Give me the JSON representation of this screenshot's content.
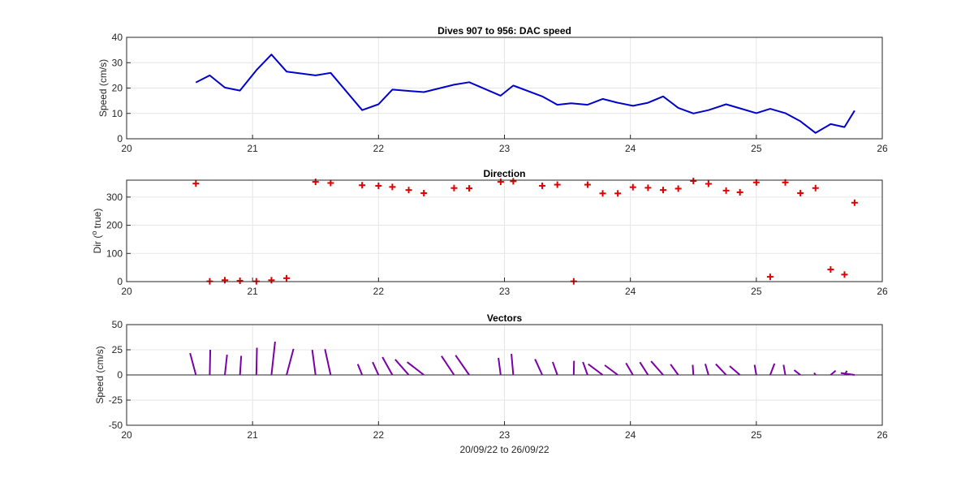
{
  "colors": {
    "speed_line": "#0000cc",
    "direction_marker": "#e00000",
    "vector": "#7b00a8",
    "grid": "#e6e6e6",
    "axis": "#262626"
  },
  "chart_data": [
    {
      "type": "line",
      "title": "Dives 907 to 956: DAC speed",
      "ylabel": "Speed (cm/s)",
      "xlabel": "",
      "xlim": [
        20,
        26
      ],
      "ylim": [
        0,
        40
      ],
      "xticks": [
        "20",
        "21",
        "22",
        "23",
        "24",
        "25",
        "26"
      ],
      "yticks": [
        "0",
        "10",
        "20",
        "30",
        "40"
      ],
      "grid": true,
      "x": [
        20.55,
        20.66,
        20.78,
        20.9,
        21.03,
        21.15,
        21.27,
        21.5,
        21.62,
        21.87,
        22.0,
        22.11,
        22.36,
        22.6,
        22.72,
        22.97,
        23.07,
        23.3,
        23.42,
        23.53,
        23.66,
        23.78,
        23.9,
        24.02,
        24.14,
        24.26,
        24.38,
        24.5,
        24.62,
        24.76,
        24.87,
        25.0,
        25.11,
        25.23,
        25.35,
        25.47,
        25.59,
        25.7,
        25.78
      ],
      "y": [
        22.2,
        25.0,
        20.2,
        19.0,
        27.0,
        33.2,
        26.5,
        25.0,
        26.0,
        11.3,
        13.6,
        19.4,
        18.4,
        21.3,
        22.3,
        17.0,
        21.0,
        16.7,
        13.4,
        14.0,
        13.4,
        15.7,
        14.2,
        13.0,
        14.2,
        16.7,
        12.2,
        10.0,
        11.3,
        13.6,
        12.0,
        10.1,
        11.8,
        10.1,
        6.9,
        2.3,
        5.8,
        4.6,
        11.1
      ]
    },
    {
      "type": "scatter",
      "title": "Direction",
      "ylabel": "Dir (o true)",
      "ylabel_main": "Dir (",
      "ylabel_sup": "o",
      "ylabel_tail": " true)",
      "xlabel": "",
      "xlim": [
        20,
        26
      ],
      "ylim": [
        0,
        360
      ],
      "xticks": [
        "20",
        "21",
        "22",
        "23",
        "24",
        "25",
        "26"
      ],
      "yticks": [
        "0",
        "100",
        "200",
        "300"
      ],
      "grid": true,
      "x": [
        20.55,
        20.66,
        20.78,
        20.9,
        21.03,
        21.15,
        21.27,
        21.5,
        21.62,
        21.87,
        22.0,
        22.11,
        22.24,
        22.36,
        22.6,
        22.72,
        22.97,
        23.07,
        23.3,
        23.42,
        23.55,
        23.66,
        23.78,
        23.9,
        24.02,
        24.14,
        24.26,
        24.38,
        24.5,
        24.62,
        24.76,
        24.87,
        25.0,
        25.11,
        25.23,
        25.35,
        25.47,
        25.59,
        25.7,
        25.78
      ],
      "y": [
        348,
        1,
        5,
        3,
        1,
        5,
        12,
        354,
        350,
        342,
        340,
        336,
        325,
        314,
        332,
        331,
        354,
        356,
        340,
        344,
        1,
        344,
        313,
        313,
        335,
        333,
        325,
        330,
        357,
        347,
        323,
        317,
        352,
        17,
        352,
        314,
        332,
        43,
        25,
        280
      ]
    },
    {
      "type": "vector",
      "title": "Vectors",
      "ylabel": "Speed (cm/s)",
      "xlabel": "20/09/22 to 26/09/22",
      "xlim": [
        20,
        26
      ],
      "ylim": [
        -50,
        50
      ],
      "xticks": [
        "20",
        "21",
        "22",
        "23",
        "24",
        "25",
        "26"
      ],
      "yticks": [
        "-50",
        "-25",
        "0",
        "25",
        "50"
      ],
      "grid": true,
      "time_per_cm_s": 0.01,
      "x": [
        20.55,
        20.66,
        20.78,
        20.9,
        21.03,
        21.15,
        21.27,
        21.5,
        21.62,
        21.87,
        22.0,
        22.11,
        22.24,
        22.36,
        22.6,
        22.72,
        22.97,
        23.07,
        23.3,
        23.42,
        23.55,
        23.66,
        23.78,
        23.9,
        24.02,
        24.14,
        24.26,
        24.38,
        24.5,
        24.62,
        24.76,
        24.87,
        25.0,
        25.11,
        25.23,
        25.35,
        25.47,
        25.59,
        25.7,
        25.78
      ],
      "speed": [
        22.2,
        25.0,
        20.2,
        19.0,
        27.0,
        33.2,
        26.5,
        25.0,
        26.0,
        11.3,
        13.6,
        19.4,
        18.8,
        18.4,
        21.3,
        22.3,
        17.0,
        21.0,
        16.7,
        13.4,
        14.0,
        13.4,
        15.7,
        14.2,
        13.0,
        14.2,
        16.7,
        12.2,
        10.0,
        11.3,
        13.6,
        12.0,
        10.1,
        11.8,
        10.1,
        6.9,
        2.3,
        5.8,
        4.6,
        11.1
      ],
      "direction": [
        348,
        1,
        5,
        3,
        1,
        5,
        12,
        354,
        350,
        342,
        340,
        336,
        325,
        314,
        332,
        331,
        354,
        356,
        340,
        344,
        1,
        344,
        313,
        313,
        335,
        333,
        325,
        330,
        357,
        347,
        323,
        317,
        352,
        17,
        352,
        314,
        332,
        43,
        25,
        280
      ]
    }
  ]
}
